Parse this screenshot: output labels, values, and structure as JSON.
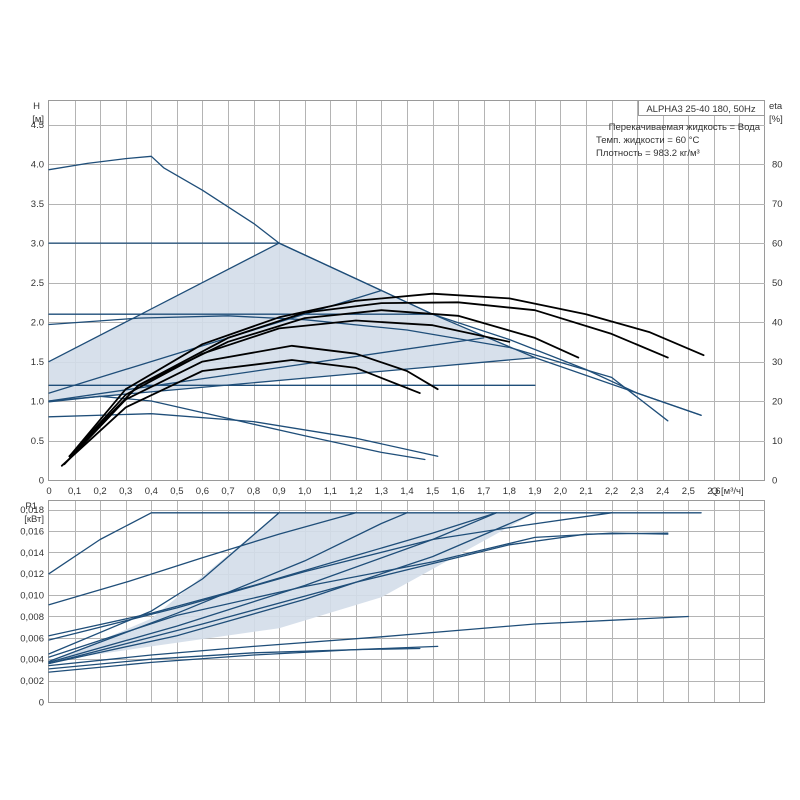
{
  "title": "ALPHA3 25-40 180, 50Hz",
  "info_lines": [
    "Перекачиваемая жидкость = Вода",
    "Темп. жидкости = 60 °C",
    "Плотность = 983.2 кг/м³"
  ],
  "colors": {
    "curve": "#1f4e79",
    "eta": "#000000",
    "fill": "#d3dde9",
    "grid": "#b4b4b4"
  },
  "chart_data": [
    {
      "type": "line",
      "name": "head-chart",
      "xlabel": "Q [м³/ч]",
      "ylabel_left": [
        "H",
        "[м]"
      ],
      "ylabel_right": [
        "eta",
        "[%]"
      ],
      "xlim": [
        0,
        2.8
      ],
      "ylim": [
        0,
        4.8
      ],
      "y2lim": [
        0,
        96
      ],
      "xticks": [
        "0",
        "0,1",
        "0,2",
        "0,3",
        "0,4",
        "0,5",
        "0,6",
        "0,7",
        "0,8",
        "0,9",
        "1,0",
        "1,1",
        "1,2",
        "1,3",
        "1,4",
        "1,5",
        "1,6",
        "1,7",
        "1,8",
        "1,9",
        "2,0",
        "2,1",
        "2,2",
        "2,3",
        "2,4",
        "2,5",
        "2,6"
      ],
      "yticks": [
        {
          "v": 0,
          "t": "0"
        },
        {
          "v": 0.5,
          "t": "0.5"
        },
        {
          "v": 1.0,
          "t": "1.0"
        },
        {
          "v": 1.5,
          "t": "1.5"
        },
        {
          "v": 2.0,
          "t": "2.0"
        },
        {
          "v": 2.5,
          "t": "2.5"
        },
        {
          "v": 3.0,
          "t": "3.0"
        },
        {
          "v": 3.5,
          "t": "3.5"
        },
        {
          "v": 4.0,
          "t": "4.0"
        },
        {
          "v": 4.5,
          "t": "4.5"
        }
      ],
      "y2ticks": [
        0,
        10,
        20,
        30,
        40,
        50,
        60,
        70,
        80
      ],
      "shaded_region": [
        [
          0,
          1.5
        ],
        [
          0.9,
          3.0
        ],
        [
          1.5,
          2.1
        ],
        [
          1.9,
          1.55
        ],
        [
          0,
          1.0
        ]
      ],
      "series": [
        {
          "kind": "head",
          "points": [
            [
              0,
              3.93
            ],
            [
              0.15,
              4.01
            ],
            [
              0.3,
              4.07
            ],
            [
              0.4,
              4.1
            ],
            [
              0.45,
              3.95
            ],
            [
              0.6,
              3.67
            ],
            [
              0.8,
              3.25
            ],
            [
              0.9,
              3.0
            ],
            [
              1.2,
              2.55
            ],
            [
              1.5,
              2.1
            ],
            [
              1.8,
              1.78
            ],
            [
              2.1,
              1.4
            ],
            [
              2.3,
              1.1
            ],
            [
              2.55,
              0.82
            ]
          ]
        },
        {
          "kind": "head",
          "points": [
            [
              0,
              3.0
            ],
            [
              0.9,
              3.0
            ]
          ]
        },
        {
          "kind": "head",
          "points": [
            [
              0.9,
              3.0
            ],
            [
              1.5,
              2.1
            ],
            [
              1.9,
              1.55
            ]
          ]
        },
        {
          "kind": "head",
          "points": [
            [
              0,
              1.97
            ],
            [
              0.35,
              2.05
            ],
            [
              0.7,
              2.08
            ],
            [
              1.0,
              2.03
            ],
            [
              1.4,
              1.9
            ],
            [
              1.8,
              1.68
            ],
            [
              2.2,
              1.3
            ],
            [
              2.42,
              0.75
            ]
          ]
        },
        {
          "kind": "head",
          "points": [
            [
              0,
              2.1
            ],
            [
              1.5,
              2.1
            ]
          ]
        },
        {
          "kind": "head",
          "points": [
            [
              0,
              1.5
            ],
            [
              0.9,
              3.0
            ]
          ]
        },
        {
          "kind": "head",
          "points": [
            [
              0,
              1.1
            ],
            [
              1.3,
              2.4
            ]
          ]
        },
        {
          "kind": "head",
          "points": [
            [
              0,
              1.0
            ],
            [
              1.9,
              1.55
            ]
          ]
        },
        {
          "kind": "head",
          "points": [
            [
              0,
              1.0
            ],
            [
              1.7,
              1.8
            ]
          ]
        },
        {
          "kind": "head",
          "points": [
            [
              0,
              1.2
            ],
            [
              1.9,
              1.2
            ]
          ]
        },
        {
          "kind": "head",
          "points": [
            [
              1.9,
              1.55
            ],
            [
              2.55,
              0.82
            ]
          ]
        },
        {
          "kind": "head",
          "points": [
            [
              0,
              0.8
            ],
            [
              0.4,
              0.84
            ],
            [
              0.8,
              0.74
            ],
            [
              1.2,
              0.53
            ],
            [
              1.52,
              0.3
            ]
          ]
        },
        {
          "kind": "head",
          "points": [
            [
              0,
              0.99
            ],
            [
              0.2,
              1.06
            ],
            [
              0.4,
              1.0
            ],
            [
              0.7,
              0.78
            ],
            [
              1.0,
              0.56
            ],
            [
              1.3,
              0.35
            ],
            [
              1.47,
              0.26
            ]
          ]
        },
        {
          "kind": "eta",
          "points": [
            [
              0.08,
              0.3
            ],
            [
              0.3,
              1.15
            ],
            [
              0.6,
              1.72
            ],
            [
              0.9,
              2.06
            ],
            [
              1.2,
              2.27
            ],
            [
              1.5,
              2.36
            ],
            [
              1.8,
              2.3
            ],
            [
              2.1,
              2.1
            ],
            [
              2.35,
              1.87
            ],
            [
              2.56,
              1.58
            ]
          ]
        },
        {
          "kind": "eta",
          "points": [
            [
              0.08,
              0.3
            ],
            [
              0.35,
              1.2
            ],
            [
              0.7,
              1.8
            ],
            [
              1.0,
              2.12
            ],
            [
              1.3,
              2.24
            ],
            [
              1.6,
              2.25
            ],
            [
              1.9,
              2.15
            ],
            [
              2.2,
              1.85
            ],
            [
              2.42,
              1.55
            ]
          ]
        },
        {
          "kind": "eta",
          "points": [
            [
              0.08,
              0.3
            ],
            [
              0.35,
              1.2
            ],
            [
              0.7,
              1.75
            ],
            [
              1.0,
              2.05
            ],
            [
              1.3,
              2.15
            ],
            [
              1.6,
              2.08
            ],
            [
              1.9,
              1.8
            ],
            [
              2.07,
              1.55
            ]
          ]
        },
        {
          "kind": "eta",
          "points": [
            [
              0.08,
              0.3
            ],
            [
              0.3,
              1.08
            ],
            [
              0.6,
              1.6
            ],
            [
              0.9,
              1.92
            ],
            [
              1.2,
              2.02
            ],
            [
              1.5,
              1.96
            ],
            [
              1.8,
              1.75
            ]
          ]
        },
        {
          "kind": "eta",
          "points": [
            [
              0.06,
              0.2
            ],
            [
              0.3,
              1.02
            ],
            [
              0.6,
              1.5
            ],
            [
              0.95,
              1.7
            ],
            [
              1.2,
              1.6
            ],
            [
              1.4,
              1.38
            ],
            [
              1.52,
              1.15
            ]
          ]
        },
        {
          "kind": "eta",
          "points": [
            [
              0.05,
              0.18
            ],
            [
              0.3,
              0.92
            ],
            [
              0.6,
              1.38
            ],
            [
              0.95,
              1.52
            ],
            [
              1.2,
              1.42
            ],
            [
              1.45,
              1.1
            ]
          ]
        }
      ]
    },
    {
      "type": "line",
      "name": "power-chart",
      "xlim": [
        0,
        2.8
      ],
      "ylim": [
        0,
        0.0188
      ],
      "ylabel_left": [
        "P1",
        "[кВт]"
      ],
      "yticks": [
        {
          "v": 0,
          "t": "0"
        },
        {
          "v": 0.002,
          "t": "0,002"
        },
        {
          "v": 0.004,
          "t": "0,004"
        },
        {
          "v": 0.006,
          "t": "0,006"
        },
        {
          "v": 0.008,
          "t": "0,008"
        },
        {
          "v": 0.01,
          "t": "0,010"
        },
        {
          "v": 0.012,
          "t": "0,012"
        },
        {
          "v": 0.014,
          "t": "0,014"
        },
        {
          "v": 0.016,
          "t": "0,016"
        },
        {
          "v": 0.018,
          "t": "0,018"
        }
      ],
      "shaded_region": [
        [
          0,
          0.0037
        ],
        [
          0.4,
          0.0078
        ],
        [
          0.9,
          0.0177
        ],
        [
          1.9,
          0.0177
        ],
        [
          1.3,
          0.0098
        ],
        [
          0.9,
          0.0069
        ],
        [
          0.4,
          0.0052
        ],
        [
          0,
          0.0038
        ]
      ],
      "series": [
        {
          "kind": "power",
          "points": [
            [
              0,
              0.012
            ],
            [
              0.2,
              0.0152
            ],
            [
              0.4,
              0.0177
            ],
            [
              2.55,
              0.0177
            ]
          ]
        },
        {
          "kind": "power",
          "points": [
            [
              0,
              0.0091
            ],
            [
              0.3,
              0.0112
            ],
            [
              0.6,
              0.0135
            ],
            [
              0.9,
              0.0157
            ],
            [
              1.2,
              0.0177
            ]
          ]
        },
        {
          "kind": "power",
          "points": [
            [
              0,
              0.0062
            ],
            [
              0.4,
              0.0083
            ],
            [
              0.8,
              0.0109
            ],
            [
              1.2,
              0.0137
            ],
            [
              1.5,
              0.0158
            ],
            [
              1.75,
              0.0177
            ]
          ]
        },
        {
          "kind": "power",
          "points": [
            [
              0,
              0.0058
            ],
            [
              0.5,
              0.0088
            ],
            [
              1.0,
              0.0122
            ],
            [
              1.5,
              0.0152
            ],
            [
              1.85,
              0.0165
            ],
            [
              2.2,
              0.0177
            ]
          ]
        },
        {
          "kind": "power",
          "points": [
            [
              0,
              0.0045
            ],
            [
              0.4,
              0.0085
            ],
            [
              0.6,
              0.0115
            ],
            [
              0.75,
              0.0146
            ],
            [
              0.9,
              0.0177
            ]
          ]
        },
        {
          "kind": "power",
          "points": [
            [
              0,
              0.0038
            ],
            [
              0.5,
              0.0083
            ],
            [
              1.0,
              0.0132
            ],
            [
              1.3,
              0.0167
            ],
            [
              1.4,
              0.0177
            ]
          ]
        },
        {
          "kind": "power",
          "points": [
            [
              0,
              0.0037
            ],
            [
              0.5,
              0.0071
            ],
            [
              1.0,
              0.0109
            ],
            [
              1.5,
              0.0152
            ],
            [
              1.75,
              0.0177
            ]
          ]
        },
        {
          "kind": "power",
          "points": [
            [
              0,
              0.0036
            ],
            [
              0.5,
              0.0062
            ],
            [
              1.0,
              0.0096
            ],
            [
              1.5,
              0.0136
            ],
            [
              1.9,
              0.0177
            ]
          ]
        },
        {
          "kind": "power",
          "points": [
            [
              0,
              0.0036
            ],
            [
              0.6,
              0.0073
            ],
            [
              1.2,
              0.0112
            ],
            [
              1.8,
              0.0147
            ],
            [
              2.1,
              0.0157
            ],
            [
              2.42,
              0.0158
            ]
          ]
        },
        {
          "kind": "power",
          "points": [
            [
              0,
              0.0042
            ],
            [
              0.5,
              0.0081
            ],
            [
              1.0,
              0.0108
            ],
            [
              1.5,
              0.0131
            ],
            [
              1.9,
              0.0154
            ],
            [
              2.2,
              0.0158
            ],
            [
              2.42,
              0.0157
            ]
          ]
        },
        {
          "kind": "power",
          "points": [
            [
              0,
              0.0034
            ],
            [
              0.4,
              0.0044
            ],
            [
              0.8,
              0.0052
            ],
            [
              1.3,
              0.0061
            ],
            [
              1.9,
              0.0073
            ],
            [
              2.5,
              0.008
            ]
          ]
        },
        {
          "kind": "power",
          "points": [
            [
              0,
              0.0028
            ],
            [
              0.4,
              0.0037
            ],
            [
              0.8,
              0.0044
            ],
            [
              1.2,
              0.0049
            ],
            [
              1.52,
              0.0052
            ]
          ]
        },
        {
          "kind": "power",
          "points": [
            [
              0,
              0.0031
            ],
            [
              0.4,
              0.004
            ],
            [
              0.8,
              0.0046
            ],
            [
              1.2,
              0.0049
            ],
            [
              1.45,
              0.005
            ]
          ]
        }
      ]
    }
  ]
}
